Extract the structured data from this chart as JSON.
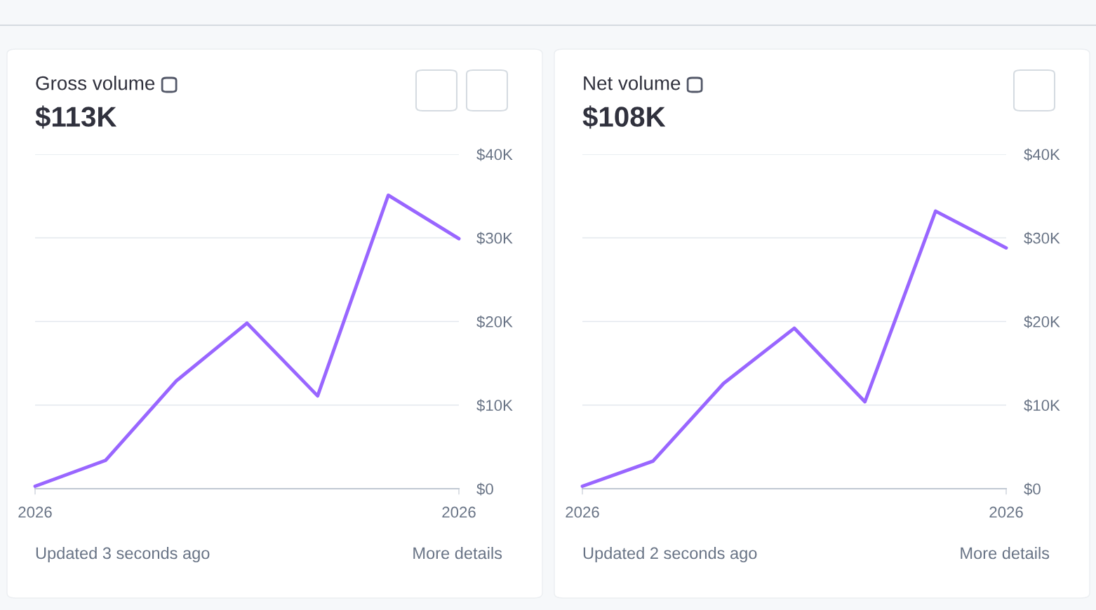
{
  "chart_data": [
    {
      "type": "line",
      "title": "Gross volume",
      "subtitle": "$113K",
      "categories": [
        "2026",
        null,
        null,
        null,
        null,
        null,
        "2026"
      ],
      "series": [
        {
          "color": "#9966ff",
          "values": [
            300,
            3400,
            12900,
            19800,
            11100,
            35100,
            29900
          ]
        }
      ],
      "ylim": [
        0,
        40000
      ],
      "yticks": [
        {
          "value": 0,
          "label": "$0"
        },
        {
          "value": 10000,
          "label": "$10K"
        },
        {
          "value": 20000,
          "label": "$20K"
        },
        {
          "value": 30000,
          "label": "$30K"
        },
        {
          "value": 40000,
          "label": "$40K"
        }
      ],
      "grid": "y",
      "legend": false,
      "marker": "none",
      "line_style": "solid",
      "annotations": [
        "Updated 3 seconds ago",
        "More details"
      ]
    },
    {
      "type": "line",
      "title": "Net volume",
      "subtitle": "$108K",
      "categories": [
        "2026",
        null,
        null,
        null,
        null,
        null,
        "2026"
      ],
      "series": [
        {
          "color": "#9966ff",
          "values": [
            300,
            3300,
            12600,
            19200,
            10400,
            33200,
            28800
          ]
        }
      ],
      "ylim": [
        0,
        40000
      ],
      "yticks": [
        {
          "value": 0,
          "label": "$0"
        },
        {
          "value": 10000,
          "label": "$10K"
        },
        {
          "value": 20000,
          "label": "$20K"
        },
        {
          "value": 30000,
          "label": "$30K"
        },
        {
          "value": 40000,
          "label": "$40K"
        }
      ],
      "grid": "y",
      "legend": false,
      "marker": "none",
      "line_style": "solid",
      "annotations": [
        "Updated 2 seconds ago",
        "More details"
      ]
    }
  ]
}
